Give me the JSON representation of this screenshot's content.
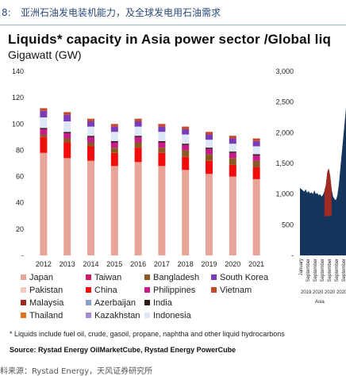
{
  "figure": {
    "number": "8:",
    "caption": "亚洲石油发电装机能力，及全球发电用石油需求",
    "outer_source": "料来源：Rystad Energy，天风证券研究所"
  },
  "header": {
    "title": "Liquids* capacity in Asia power sector /Global liq",
    "unit": "Gigawatt (GW)"
  },
  "footnote": "* Liquids include fuel oil, crude, gasoil, propane, naphtha and other liquid hydrocarbons",
  "source": "Source: Rystad Energy OilMarketCube, Rystad Energy PowerCube",
  "chart_data": [
    {
      "type": "bar",
      "stacked": true,
      "title": "Liquids* capacity in Asia power sector",
      "ylabel": "Gigawatt (GW)",
      "ylim": [
        0,
        140
      ],
      "yticks": [
        0,
        20,
        40,
        60,
        80,
        100,
        120,
        140
      ],
      "ytick_labels": [
        "-",
        "20",
        "40",
        "60",
        "80",
        "100",
        "120",
        "140"
      ],
      "grid": false,
      "legend_position": "bottom",
      "categories": [
        "2012",
        "2013",
        "2014",
        "2015",
        "2016",
        "2017",
        "2018",
        "2019",
        "2020",
        "2021"
      ],
      "series": [
        {
          "name": "Japan",
          "color": "#e8a499",
          "values": [
            78,
            74,
            72,
            68,
            71,
            68,
            65,
            62,
            60,
            58
          ]
        },
        {
          "name": "Pakistan",
          "color": "#f5c9c1",
          "values": [
            0,
            0,
            0,
            0,
            0,
            0,
            0,
            0,
            0,
            0
          ]
        },
        {
          "name": "Malaysia",
          "color": "#9e2a22",
          "values": [
            0,
            0,
            0,
            0,
            0,
            0,
            0,
            0,
            0,
            0
          ]
        },
        {
          "name": "Thailand",
          "color": "#e3731f",
          "values": [
            0,
            0,
            0,
            0,
            0,
            0,
            0,
            0,
            0,
            0
          ]
        },
        {
          "name": "Taiwan",
          "color": "#cf1a6b",
          "values": [
            0,
            0,
            0,
            0,
            0,
            0,
            0,
            0,
            0,
            0
          ]
        },
        {
          "name": "China",
          "color": "#f20d0d",
          "values": [
            12,
            12,
            11,
            10,
            11,
            10,
            10,
            10,
            9,
            9
          ]
        },
        {
          "name": "Azerbaijan",
          "color": "#8a9ec8",
          "values": [
            0,
            0,
            0,
            0,
            0,
            0,
            0,
            0,
            0,
            0
          ]
        },
        {
          "name": "Kazakhstan",
          "color": "#a58bd6",
          "values": [
            0,
            0,
            0,
            0,
            0,
            0,
            0,
            0,
            0,
            0
          ]
        },
        {
          "name": "Bangladesh",
          "color": "#8b5a24",
          "values": [
            2,
            3,
            3,
            4,
            4,
            4,
            5,
            5,
            5,
            5
          ]
        },
        {
          "name": "Philippines",
          "color": "#c81a8b",
          "values": [
            4,
            4,
            4,
            4,
            4,
            4,
            4,
            4,
            4,
            4
          ]
        },
        {
          "name": "India",
          "color": "#2b1a1a",
          "values": [
            1,
            1,
            1,
            1,
            1,
            1,
            1,
            1,
            1,
            1
          ]
        },
        {
          "name": "Indonesia",
          "color": "#dde7f5",
          "values": [
            8,
            8,
            7,
            7,
            7,
            7,
            7,
            6,
            6,
            6
          ]
        },
        {
          "name": "South Korea",
          "color": "#7a3cb8",
          "values": [
            5,
            5,
            4,
            4,
            4,
            4,
            4,
            4,
            4,
            4
          ]
        },
        {
          "name": "Vietnam",
          "color": "#c54a2a",
          "values": [
            2,
            2,
            2,
            2,
            2,
            2,
            2,
            2,
            2,
            2
          ]
        }
      ]
    },
    {
      "type": "area",
      "title": "Global liq",
      "ylim": [
        0,
        3000
      ],
      "yticks": [
        0,
        500,
        1000,
        1500,
        2000,
        2500,
        3000
      ],
      "ytick_labels": [
        "-",
        "500",
        "1,000",
        "1,500",
        "2,000",
        "2,500",
        "3,000"
      ],
      "x_tick_labels": [
        "January",
        "September",
        "September",
        "September",
        "September",
        "September",
        "September"
      ],
      "x_year_labels": [
        "2019",
        "2020",
        "2020",
        "2020"
      ],
      "x_region_label": "Asia",
      "area_color": "#14365c",
      "highlight_color": "#9e2a22",
      "values": [
        1100,
        1080,
        1060,
        1040,
        1080,
        1020,
        1050,
        1010,
        1030,
        1000,
        1060,
        1000,
        1020,
        980,
        1000,
        960,
        990,
        1050,
        1150,
        1360,
        1420,
        1300,
        1080,
        960,
        920,
        900,
        980,
        1150,
        1400,
        1650,
        1900,
        2150,
        2400
      ]
    }
  ]
}
